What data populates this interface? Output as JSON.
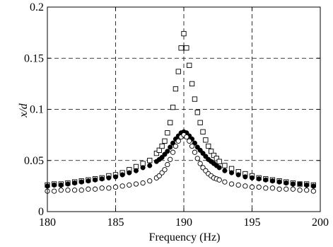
{
  "chart_data": {
    "type": "scatter",
    "title": "",
    "xlabel": "Frequency (Hz)",
    "ylabel": "x/d",
    "xlim": [
      180,
      200
    ],
    "ylim": [
      0,
      0.2
    ],
    "xticks": [
      180,
      185,
      190,
      195,
      200
    ],
    "yticks": [
      0,
      0.05,
      0.1,
      0.15,
      0.2
    ],
    "xtick_labels": [
      "180",
      "185",
      "190",
      "195",
      "200"
    ],
    "ytick_labels": [
      "0",
      "0.05",
      "0.1",
      "0.15",
      "0.2"
    ],
    "grid": true,
    "grid_style": "dashed",
    "legend": "none",
    "series": [
      {
        "marker": "open-square",
        "color": "#000000",
        "x": [
          180,
          180.5,
          181,
          181.5,
          182,
          182.5,
          183,
          183.5,
          184,
          184.5,
          185,
          185.5,
          186,
          186.5,
          187,
          187.5,
          188,
          188.2,
          188.4,
          188.6,
          188.8,
          189,
          189.2,
          189.4,
          189.6,
          189.8,
          190,
          190.2,
          190.4,
          190.6,
          190.8,
          191,
          191.2,
          191.4,
          191.6,
          191.8,
          192,
          192.2,
          192.4,
          192.6,
          193,
          193.5,
          194,
          194.5,
          195,
          195.5,
          196,
          196.5,
          197,
          197.5,
          198,
          198.5,
          199,
          199.5
        ],
        "y": [
          0.026,
          0.027,
          0.027,
          0.028,
          0.029,
          0.03,
          0.031,
          0.032,
          0.033,
          0.035,
          0.036,
          0.038,
          0.041,
          0.044,
          0.047,
          0.05,
          0.057,
          0.06,
          0.064,
          0.069,
          0.077,
          0.087,
          0.102,
          0.12,
          0.137,
          0.16,
          0.174,
          0.16,
          0.143,
          0.125,
          0.11,
          0.097,
          0.087,
          0.078,
          0.07,
          0.064,
          0.059,
          0.055,
          0.052,
          0.049,
          0.045,
          0.042,
          0.039,
          0.037,
          0.035,
          0.033,
          0.032,
          0.031,
          0.03,
          0.029,
          0.028,
          0.027,
          0.027,
          0.026
        ]
      },
      {
        "marker": "filled-circle",
        "color": "#000000",
        "x": [
          180,
          180.5,
          181,
          181.5,
          182,
          182.5,
          183,
          183.5,
          184,
          184.5,
          185,
          185.5,
          186,
          186.5,
          187,
          187.5,
          188,
          188.2,
          188.4,
          188.6,
          188.8,
          189,
          189.2,
          189.4,
          189.6,
          189.8,
          190,
          190.2,
          190.4,
          190.6,
          190.8,
          191,
          191.2,
          191.4,
          191.6,
          191.8,
          192,
          192.2,
          192.4,
          192.6,
          193,
          193.5,
          194,
          194.5,
          195,
          195.5,
          196,
          196.5,
          197,
          197.5,
          198,
          198.5,
          199,
          199.5
        ],
        "y": [
          0.025,
          0.026,
          0.026,
          0.027,
          0.028,
          0.029,
          0.03,
          0.031,
          0.032,
          0.033,
          0.034,
          0.036,
          0.038,
          0.04,
          0.043,
          0.045,
          0.049,
          0.051,
          0.053,
          0.056,
          0.059,
          0.063,
          0.067,
          0.071,
          0.074,
          0.077,
          0.078,
          0.077,
          0.074,
          0.071,
          0.067,
          0.063,
          0.06,
          0.057,
          0.054,
          0.051,
          0.049,
          0.047,
          0.045,
          0.043,
          0.04,
          0.038,
          0.036,
          0.034,
          0.033,
          0.032,
          0.031,
          0.03,
          0.029,
          0.028,
          0.027,
          0.027,
          0.026,
          0.025
        ]
      },
      {
        "marker": "open-circle",
        "color": "#000000",
        "x": [
          180,
          180.5,
          181,
          181.5,
          182,
          182.5,
          183,
          183.5,
          184,
          184.5,
          185,
          185.5,
          186,
          186.5,
          187,
          187.5,
          188,
          188.2,
          188.4,
          188.6,
          188.8,
          189,
          189.2,
          189.4,
          189.6,
          189.8,
          190,
          190.2,
          190.4,
          190.6,
          190.8,
          191,
          191.2,
          191.4,
          191.6,
          191.8,
          192,
          192.2,
          192.4,
          192.6,
          193,
          193.5,
          194,
          194.5,
          195,
          195.5,
          196,
          196.5,
          197,
          197.5,
          198,
          198.5,
          199,
          199.5
        ],
        "y": [
          0.02,
          0.02,
          0.021,
          0.021,
          0.021,
          0.021,
          0.022,
          0.022,
          0.023,
          0.023,
          0.024,
          0.025,
          0.026,
          0.027,
          0.028,
          0.03,
          0.033,
          0.035,
          0.038,
          0.041,
          0.046,
          0.051,
          0.058,
          0.064,
          0.069,
          0.073,
          0.075,
          0.073,
          0.069,
          0.064,
          0.058,
          0.052,
          0.047,
          0.043,
          0.04,
          0.037,
          0.035,
          0.033,
          0.032,
          0.031,
          0.029,
          0.027,
          0.026,
          0.025,
          0.024,
          0.024,
          0.023,
          0.023,
          0.022,
          0.022,
          0.022,
          0.021,
          0.021,
          0.02
        ]
      }
    ]
  }
}
